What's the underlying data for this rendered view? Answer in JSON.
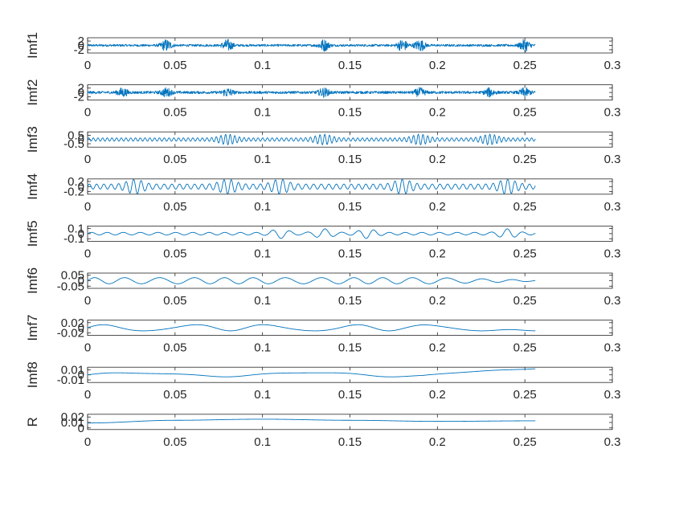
{
  "figure": {
    "line_color": "#0072bd",
    "axis_color": "#262626",
    "background": "#ffffff"
  },
  "chart_data": [
    {
      "type": "line",
      "ylabel": "Imf1",
      "xlim": [
        0,
        0.3
      ],
      "ylim": [
        -3.5,
        3.5
      ],
      "xticks": [
        "0",
        "0.05",
        "0.1",
        "0.15",
        "0.2",
        "0.25",
        "0.3"
      ],
      "yticks": [
        "2",
        "0",
        "-2"
      ],
      "series": [
        {
          "x_range": [
            0,
            0.256
          ],
          "shape": "high-frequency noise",
          "amplitude": 0.5,
          "bursts": [
            0.045,
            0.08,
            0.135,
            0.18,
            0.19,
            0.25
          ],
          "burst_amplitude": 2.5
        }
      ]
    },
    {
      "type": "line",
      "ylabel": "Imf2",
      "xlim": [
        0,
        0.3
      ],
      "ylim": [
        -3.5,
        3.5
      ],
      "xticks": [
        "0",
        "0.05",
        "0.1",
        "0.15",
        "0.2",
        "0.25",
        "0.3"
      ],
      "yticks": [
        "2",
        "0",
        "-2"
      ],
      "series": [
        {
          "x_range": [
            0,
            0.256
          ],
          "shape": "high-frequency noise",
          "amplitude": 0.6,
          "bursts": [
            0.02,
            0.045,
            0.08,
            0.135,
            0.19,
            0.23,
            0.25
          ],
          "burst_amplitude": 1.8
        }
      ]
    },
    {
      "type": "line",
      "ylabel": "Imf3",
      "xlim": [
        0,
        0.3
      ],
      "ylim": [
        -0.9,
        0.9
      ],
      "xticks": [
        "0",
        "0.05",
        "0.1",
        "0.15",
        "0.2",
        "0.25",
        "0.3"
      ],
      "yticks": [
        "0.5",
        "0",
        "-0.5"
      ],
      "series": [
        {
          "x_range": [
            0,
            0.256
          ],
          "shape": "oscillation",
          "cycles": 95,
          "amplitude": 0.2,
          "bursts": [
            0.08,
            0.135,
            0.19,
            0.23
          ],
          "burst_amplitude": 0.45
        }
      ]
    },
    {
      "type": "line",
      "ylabel": "Imf4",
      "xlim": [
        0,
        0.3
      ],
      "ylim": [
        -0.3,
        0.3
      ],
      "xticks": [
        "0",
        "0.05",
        "0.1",
        "0.15",
        "0.2",
        "0.25",
        "0.3"
      ],
      "yticks": [
        "0.2",
        "0",
        "-0.2"
      ],
      "series": [
        {
          "x_range": [
            0,
            0.256
          ],
          "shape": "oscillation",
          "cycles": 60,
          "amplitude": 0.1,
          "bursts": [
            0.027,
            0.08,
            0.11,
            0.18,
            0.24
          ],
          "burst_amplitude": 0.2
        }
      ]
    },
    {
      "type": "line",
      "ylabel": "Imf5",
      "xlim": [
        0,
        0.3
      ],
      "ylim": [
        -0.15,
        0.15
      ],
      "xticks": [
        "0",
        "0.05",
        "0.1",
        "0.15",
        "0.2",
        "0.25",
        "0.3"
      ],
      "yticks": [
        "0.1",
        "0",
        "-0.1"
      ],
      "series": [
        {
          "x_range": [
            0,
            0.256
          ],
          "shape": "oscillation",
          "cycles": 27,
          "amplitude": 0.025,
          "bursts": [
            0.11,
            0.135,
            0.16,
            0.24
          ],
          "burst_amplitude": 0.07
        }
      ]
    },
    {
      "type": "line",
      "ylabel": "Imf6",
      "xlim": [
        0,
        0.3
      ],
      "ylim": [
        -0.07,
        0.07
      ],
      "xticks": [
        "0",
        "0.05",
        "0.1",
        "0.15",
        "0.2",
        "0.25",
        "0.3"
      ],
      "yticks": [
        "0.05",
        "0",
        "-0.05"
      ],
      "series": [
        {
          "x_range": [
            0,
            0.256
          ],
          "shape": "oscillation",
          "cycles": 14,
          "amplitude": 0.028,
          "decay_after": 0.2
        }
      ]
    },
    {
      "type": "line",
      "ylabel": "Imf7",
      "xlim": [
        0,
        0.3
      ],
      "ylim": [
        -0.03,
        0.03
      ],
      "xticks": [
        "0",
        "0.05",
        "0.1",
        "0.15",
        "0.2",
        "0.25",
        "0.3"
      ],
      "yticks": [
        "0.02",
        "0",
        "-0.02"
      ],
      "series": [
        {
          "x_range": [
            0,
            0.256
          ],
          "shape": "oscillation",
          "cycles": 5.5,
          "amplitude": 0.012,
          "end_value": -0.012
        }
      ]
    },
    {
      "type": "line",
      "ylabel": "Imf8",
      "xlim": [
        0,
        0.3
      ],
      "ylim": [
        -0.015,
        0.015
      ],
      "xticks": [
        "0",
        "0.05",
        "0.1",
        "0.15",
        "0.2",
        "0.25",
        "0.3"
      ],
      "yticks": [
        "0.01",
        "0",
        "-0.01"
      ],
      "series": [
        {
          "x_range": [
            0,
            0.256
          ],
          "shape": "oscillation",
          "cycles": 2.5,
          "amplitude": 0.004,
          "end_value": 0.012
        }
      ]
    },
    {
      "type": "line",
      "ylabel": "R",
      "xlim": [
        0,
        0.3
      ],
      "ylim": [
        -0.003,
        0.025
      ],
      "xticks": [
        "0",
        "0.05",
        "0.1",
        "0.15",
        "0.2",
        "0.25",
        "0.3"
      ],
      "yticks": [
        "0.02",
        "0.01",
        "0"
      ],
      "series": [
        {
          "x_range": [
            0,
            0.256
          ],
          "shape": "trend",
          "x": [
            0,
            0.05,
            0.1,
            0.15,
            0.2,
            0.256
          ],
          "y": [
            0.009,
            0.014,
            0.016,
            0.014,
            0.012,
            0.013
          ]
        }
      ]
    }
  ]
}
